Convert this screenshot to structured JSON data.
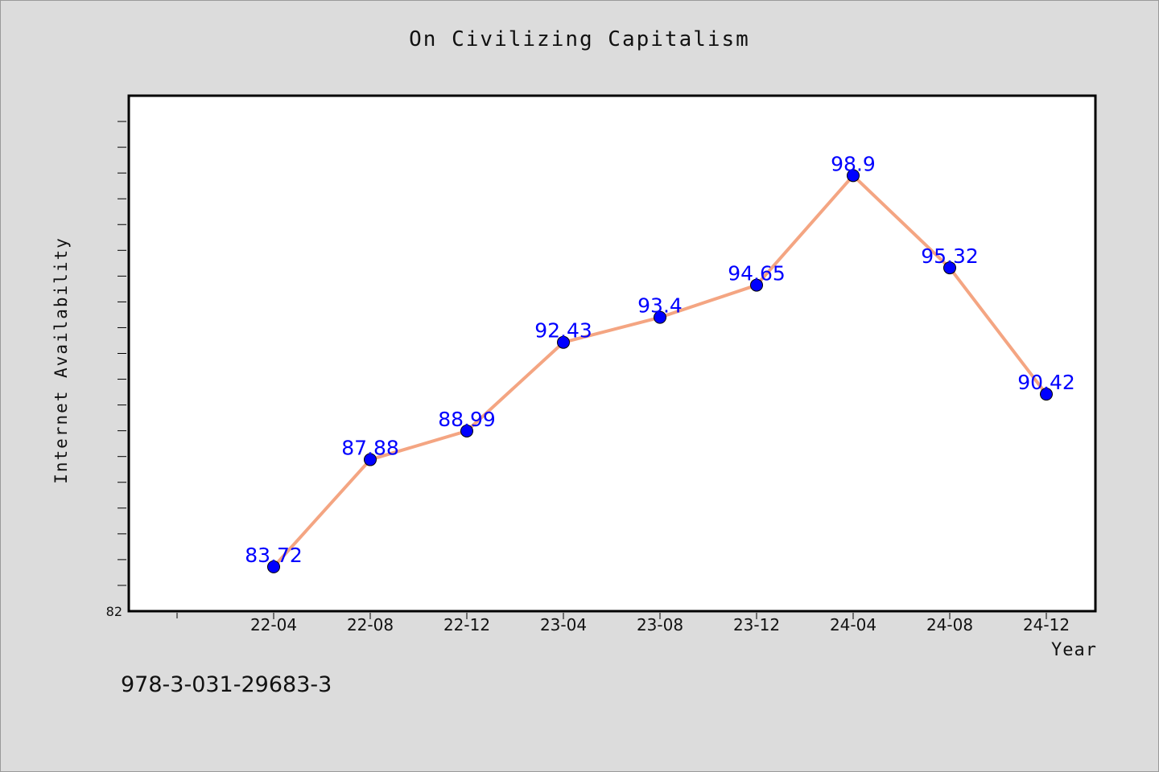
{
  "chart_data": {
    "type": "line",
    "title": "On Civilizing Capitalism",
    "xlabel": "Year",
    "ylabel": "Internet Availability",
    "categories": [
      "22-04",
      "22-08",
      "22-12",
      "23-04",
      "23-08",
      "23-12",
      "24-04",
      "24-08",
      "24-12"
    ],
    "series": [
      {
        "values": [
          83.72,
          87.88,
          88.99,
          92.43,
          93.4,
          94.65,
          98.9,
          95.32,
          90.42
        ]
      }
    ],
    "data_labels": [
      "83.72",
      "87.88",
      "88.99",
      "92.43",
      "93.4",
      "94.65",
      "98.9",
      "95.32",
      "90.42"
    ],
    "ylim": [
      82,
      102
    ],
    "y_tick_labels": [
      "82"
    ],
    "grid": false,
    "line_color": "#f4a582",
    "marker_color": "#0000ff",
    "label_color": "#0000ff"
  },
  "footer_text": "978-3-031-29683-3"
}
